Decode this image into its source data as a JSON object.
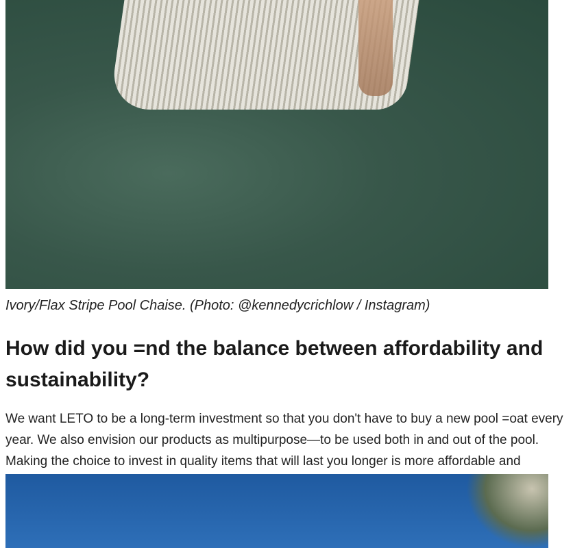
{
  "figure": {
    "caption": "Ivory/Flax Stripe Pool Chaise. (Photo: @kennedycrichlow / Instagram)"
  },
  "section": {
    "heading": "How did you =nd the balance between affordability and sustainability?",
    "paragraph": "We want LETO to be a long-term investment so that you don't have to buy a new pool =oat every year. We also envision our products as multipurpose—to be used both in and out of the pool. Making the choice to invest in quality items that will last you longer is more affordable and sustainable in the long run."
  }
}
